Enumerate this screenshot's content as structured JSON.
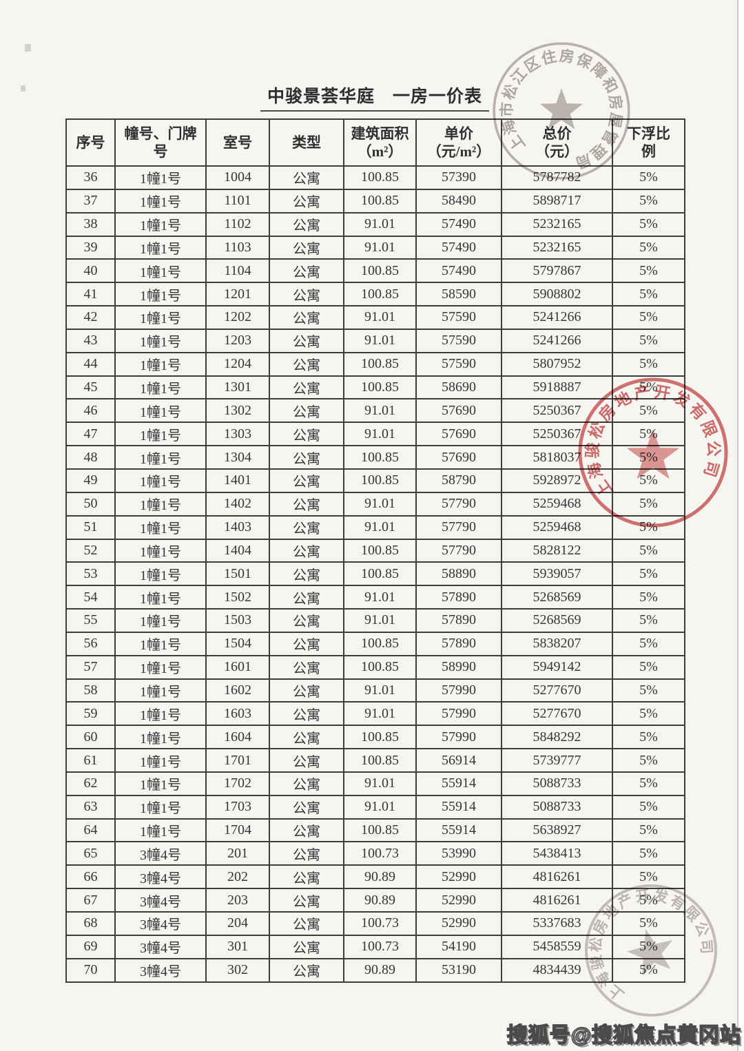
{
  "page": {
    "title": "中骏景荟华庭　一房一价表"
  },
  "table": {
    "headers": [
      "序号",
      "幢号、门牌\n号",
      "室号",
      "类型",
      "建筑面积\n（m²）",
      "单价\n（元/m²）",
      "总价\n（元）",
      "下浮比\n例"
    ],
    "rows": [
      [
        "36",
        "1幢1号",
        "1004",
        "公寓",
        "100.85",
        "57390",
        "5787782",
        "5%"
      ],
      [
        "37",
        "1幢1号",
        "1101",
        "公寓",
        "100.85",
        "58490",
        "5898717",
        "5%"
      ],
      [
        "38",
        "1幢1号",
        "1102",
        "公寓",
        "91.01",
        "57490",
        "5232165",
        "5%"
      ],
      [
        "39",
        "1幢1号",
        "1103",
        "公寓",
        "91.01",
        "57490",
        "5232165",
        "5%"
      ],
      [
        "40",
        "1幢1号",
        "1104",
        "公寓",
        "100.85",
        "57490",
        "5797867",
        "5%"
      ],
      [
        "41",
        "1幢1号",
        "1201",
        "公寓",
        "100.85",
        "58590",
        "5908802",
        "5%"
      ],
      [
        "42",
        "1幢1号",
        "1202",
        "公寓",
        "91.01",
        "57590",
        "5241266",
        "5%"
      ],
      [
        "43",
        "1幢1号",
        "1203",
        "公寓",
        "91.01",
        "57590",
        "5241266",
        "5%"
      ],
      [
        "44",
        "1幢1号",
        "1204",
        "公寓",
        "100.85",
        "57590",
        "5807952",
        "5%"
      ],
      [
        "45",
        "1幢1号",
        "1301",
        "公寓",
        "100.85",
        "58690",
        "5918887",
        "5%"
      ],
      [
        "46",
        "1幢1号",
        "1302",
        "公寓",
        "91.01",
        "57690",
        "5250367",
        "5%"
      ],
      [
        "47",
        "1幢1号",
        "1303",
        "公寓",
        "91.01",
        "57690",
        "5250367",
        "5%"
      ],
      [
        "48",
        "1幢1号",
        "1304",
        "公寓",
        "100.85",
        "57690",
        "5818037",
        "5%"
      ],
      [
        "49",
        "1幢1号",
        "1401",
        "公寓",
        "100.85",
        "58790",
        "5928972",
        "5%"
      ],
      [
        "50",
        "1幢1号",
        "1402",
        "公寓",
        "91.01",
        "57790",
        "5259468",
        "5%"
      ],
      [
        "51",
        "1幢1号",
        "1403",
        "公寓",
        "91.01",
        "57790",
        "5259468",
        "5%"
      ],
      [
        "52",
        "1幢1号",
        "1404",
        "公寓",
        "100.85",
        "57790",
        "5828122",
        "5%"
      ],
      [
        "53",
        "1幢1号",
        "1501",
        "公寓",
        "100.85",
        "58890",
        "5939057",
        "5%"
      ],
      [
        "54",
        "1幢1号",
        "1502",
        "公寓",
        "91.01",
        "57890",
        "5268569",
        "5%"
      ],
      [
        "55",
        "1幢1号",
        "1503",
        "公寓",
        "91.01",
        "57890",
        "5268569",
        "5%"
      ],
      [
        "56",
        "1幢1号",
        "1504",
        "公寓",
        "100.85",
        "57890",
        "5838207",
        "5%"
      ],
      [
        "57",
        "1幢1号",
        "1601",
        "公寓",
        "100.85",
        "58990",
        "5949142",
        "5%"
      ],
      [
        "58",
        "1幢1号",
        "1602",
        "公寓",
        "91.01",
        "57990",
        "5277670",
        "5%"
      ],
      [
        "59",
        "1幢1号",
        "1603",
        "公寓",
        "91.01",
        "57990",
        "5277670",
        "5%"
      ],
      [
        "60",
        "1幢1号",
        "1604",
        "公寓",
        "100.85",
        "57990",
        "5848292",
        "5%"
      ],
      [
        "61",
        "1幢1号",
        "1701",
        "公寓",
        "100.85",
        "56914",
        "5739777",
        "5%"
      ],
      [
        "62",
        "1幢1号",
        "1702",
        "公寓",
        "91.01",
        "55914",
        "5088733",
        "5%"
      ],
      [
        "63",
        "1幢1号",
        "1703",
        "公寓",
        "91.01",
        "55914",
        "5088733",
        "5%"
      ],
      [
        "64",
        "1幢1号",
        "1704",
        "公寓",
        "100.85",
        "55914",
        "5638927",
        "5%"
      ],
      [
        "65",
        "3幢4号",
        "201",
        "公寓",
        "100.73",
        "53990",
        "5438413",
        "5%"
      ],
      [
        "66",
        "3幢4号",
        "202",
        "公寓",
        "90.89",
        "52990",
        "4816261",
        "5%"
      ],
      [
        "67",
        "3幢4号",
        "203",
        "公寓",
        "90.89",
        "52990",
        "4816261",
        "5%"
      ],
      [
        "68",
        "3幢4号",
        "204",
        "公寓",
        "100.73",
        "52990",
        "5337683",
        "5%"
      ],
      [
        "69",
        "3幢4号",
        "301",
        "公寓",
        "100.73",
        "54190",
        "5458559",
        "5%"
      ],
      [
        "70",
        "3幢4号",
        "302",
        "公寓",
        "90.89",
        "53190",
        "4834439",
        "5%"
      ]
    ]
  },
  "stamps": {
    "top": {
      "ring_text": "上海市松江区住房保障和房屋管理局"
    },
    "middle": {
      "ring_text": "上海骏松房地产开发有限公司"
    },
    "bottom": {
      "ring_text": "上海骏松房地产开发有限公司"
    }
  },
  "watermark": {
    "text": "搜狐号@搜狐焦点黄冈站"
  },
  "colors": {
    "seal_red": "#d25f5f",
    "seal_gray_top": "#8a7d72",
    "seal_gray_bottom": "#938b82",
    "table_border": "#3d3d3d"
  }
}
